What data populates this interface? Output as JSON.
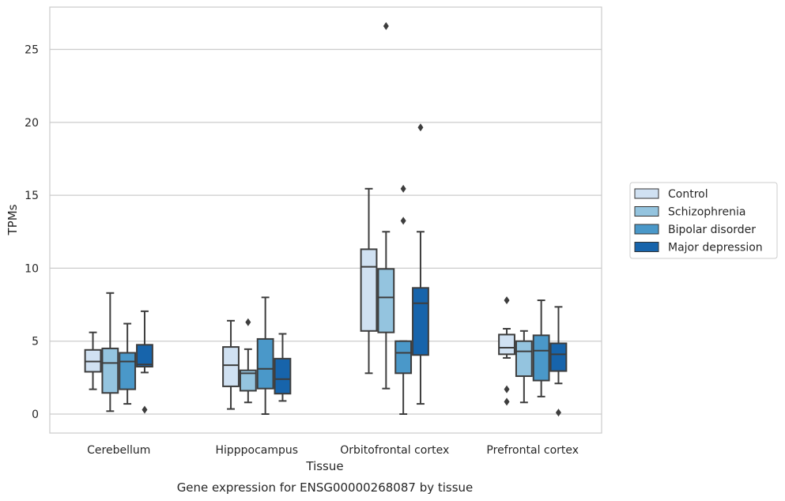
{
  "chart_data": {
    "type": "box",
    "caption": "Gene expression for ENSG00000268087 by tissue",
    "xlabel": "Tissue",
    "ylabel": "TPMs",
    "categories": [
      "Cerebellum",
      "Hipppocampus",
      "Orbitofrontal cortex",
      "Prefrontal cortex"
    ],
    "yticks": [
      0,
      5,
      10,
      15,
      20,
      25
    ],
    "ylim": [
      -1.3,
      27.9
    ],
    "grid": "horizontal",
    "legend_position": "right",
    "series": [
      {
        "name": "Control",
        "color": "#d0e1f2",
        "boxes": [
          {
            "whisker_low": 1.7,
            "q1": 2.9,
            "median": 3.6,
            "q3": 4.4,
            "whisker_high": 5.6,
            "outliers": []
          },
          {
            "whisker_low": 0.35,
            "q1": 1.9,
            "median": 3.35,
            "q3": 4.6,
            "whisker_high": 6.4,
            "outliers": []
          },
          {
            "whisker_low": 2.8,
            "q1": 5.7,
            "median": 10.1,
            "q3": 11.3,
            "whisker_high": 15.45,
            "outliers": []
          },
          {
            "whisker_low": 3.85,
            "q1": 4.1,
            "median": 4.55,
            "q3": 5.45,
            "whisker_high": 5.85,
            "outliers": [
              7.8,
              1.7,
              0.85
            ]
          }
        ]
      },
      {
        "name": "Schizophrenia",
        "color": "#94c4df",
        "boxes": [
          {
            "whisker_low": 0.2,
            "q1": 1.45,
            "median": 3.5,
            "q3": 4.5,
            "whisker_high": 8.3,
            "outliers": []
          },
          {
            "whisker_low": 0.8,
            "q1": 1.6,
            "median": 2.8,
            "q3": 3.0,
            "whisker_high": 4.45,
            "outliers": [
              6.3
            ]
          },
          {
            "whisker_low": 1.75,
            "q1": 5.6,
            "median": 8.0,
            "q3": 9.95,
            "whisker_high": 12.5,
            "outliers": [
              26.6
            ]
          },
          {
            "whisker_low": 0.8,
            "q1": 2.6,
            "median": 4.3,
            "q3": 5.0,
            "whisker_high": 5.7,
            "outliers": []
          }
        ]
      },
      {
        "name": "Bipolar disorder",
        "color": "#4a98c9",
        "boxes": [
          {
            "whisker_low": 0.7,
            "q1": 1.7,
            "median": 3.6,
            "q3": 4.2,
            "whisker_high": 6.2,
            "outliers": []
          },
          {
            "whisker_low": 0.0,
            "q1": 1.75,
            "median": 3.1,
            "q3": 5.15,
            "whisker_high": 8.0,
            "outliers": []
          },
          {
            "whisker_low": 0.0,
            "q1": 2.8,
            "median": 4.2,
            "q3": 5.0,
            "whisker_high": 5.0,
            "outliers": [
              15.45,
              13.25
            ]
          },
          {
            "whisker_low": 1.2,
            "q1": 2.3,
            "median": 4.35,
            "q3": 5.4,
            "whisker_high": 7.8,
            "outliers": []
          }
        ]
      },
      {
        "name": "Major depression",
        "color": "#1764ab",
        "boxes": [
          {
            "whisker_low": 2.85,
            "q1": 3.25,
            "median": 3.4,
            "q3": 4.75,
            "whisker_high": 7.05,
            "outliers": [
              0.3
            ]
          },
          {
            "whisker_low": 0.9,
            "q1": 1.4,
            "median": 2.4,
            "q3": 3.8,
            "whisker_high": 5.5,
            "outliers": []
          },
          {
            "whisker_low": 0.7,
            "q1": 4.05,
            "median": 7.6,
            "q3": 8.65,
            "whisker_high": 12.5,
            "outliers": [
              19.65
            ]
          },
          {
            "whisker_low": 2.1,
            "q1": 2.95,
            "median": 4.1,
            "q3": 4.85,
            "whisker_high": 7.35,
            "outliers": [
              0.1
            ]
          }
        ]
      }
    ]
  }
}
